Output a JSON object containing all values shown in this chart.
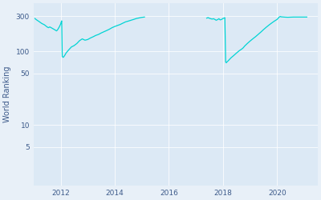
{
  "ylabel": "World Ranking",
  "line_color": "#00d4d4",
  "bg_color": "#dce9f5",
  "fig_bg_color": "#e8f0f8",
  "yticks": [
    5,
    10,
    50,
    100,
    300
  ],
  "xlim_start": 2011.0,
  "xlim_end": 2021.5,
  "ylim_bottom": 1.5,
  "ylim_top": 450,
  "xtick_vals": [
    2012,
    2014,
    2016,
    2018,
    2020
  ],
  "segment1": {
    "points": [
      [
        2011.05,
        280
      ],
      [
        2011.1,
        270
      ],
      [
        2011.2,
        255
      ],
      [
        2011.3,
        240
      ],
      [
        2011.4,
        230
      ],
      [
        2011.5,
        215
      ],
      [
        2011.55,
        210
      ],
      [
        2011.6,
        215
      ],
      [
        2011.65,
        210
      ],
      [
        2011.7,
        205
      ],
      [
        2011.75,
        200
      ],
      [
        2011.8,
        195
      ],
      [
        2011.85,
        190
      ],
      [
        2011.88,
        195
      ],
      [
        2011.9,
        200
      ],
      [
        2011.95,
        215
      ],
      [
        2012.0,
        235
      ],
      [
        2012.02,
        250
      ],
      [
        2012.04,
        260
      ],
      [
        2012.06,
        85
      ],
      [
        2012.1,
        83
      ],
      [
        2012.15,
        88
      ],
      [
        2012.2,
        95
      ],
      [
        2012.3,
        105
      ],
      [
        2012.4,
        115
      ],
      [
        2012.5,
        120
      ],
      [
        2012.6,
        128
      ],
      [
        2012.7,
        140
      ],
      [
        2012.8,
        148
      ],
      [
        2012.9,
        142
      ],
      [
        2013.0,
        145
      ],
      [
        2013.1,
        152
      ],
      [
        2013.2,
        158
      ],
      [
        2013.3,
        165
      ],
      [
        2013.4,
        170
      ],
      [
        2013.5,
        178
      ],
      [
        2013.6,
        185
      ],
      [
        2013.7,
        192
      ],
      [
        2013.8,
        200
      ],
      [
        2013.9,
        210
      ],
      [
        2014.0,
        218
      ],
      [
        2014.1,
        225
      ],
      [
        2014.2,
        232
      ],
      [
        2014.3,
        242
      ],
      [
        2014.4,
        252
      ],
      [
        2014.5,
        258
      ],
      [
        2014.6,
        265
      ],
      [
        2014.7,
        272
      ],
      [
        2014.8,
        280
      ],
      [
        2014.9,
        285
      ],
      [
        2015.0,
        290
      ],
      [
        2015.1,
        293
      ]
    ]
  },
  "segment2": {
    "points": [
      [
        2017.4,
        283
      ],
      [
        2017.45,
        288
      ],
      [
        2017.5,
        282
      ],
      [
        2017.55,
        278
      ],
      [
        2017.6,
        275
      ],
      [
        2017.65,
        278
      ],
      [
        2017.7,
        272
      ],
      [
        2017.75,
        265
      ],
      [
        2017.8,
        270
      ],
      [
        2017.85,
        278
      ],
      [
        2017.9,
        268
      ],
      [
        2017.95,
        272
      ],
      [
        2018.0,
        280
      ],
      [
        2018.02,
        282
      ],
      [
        2018.05,
        285
      ],
      [
        2018.07,
        287
      ],
      [
        2018.1,
        72
      ],
      [
        2018.12,
        70
      ],
      [
        2018.15,
        72
      ],
      [
        2018.2,
        75
      ],
      [
        2018.3,
        82
      ],
      [
        2018.4,
        88
      ],
      [
        2018.5,
        95
      ],
      [
        2018.6,
        102
      ],
      [
        2018.7,
        108
      ],
      [
        2018.75,
        112
      ],
      [
        2018.8,
        118
      ],
      [
        2018.9,
        128
      ],
      [
        2019.0,
        138
      ],
      [
        2019.1,
        148
      ],
      [
        2019.2,
        158
      ],
      [
        2019.3,
        170
      ],
      [
        2019.4,
        183
      ],
      [
        2019.5,
        198
      ],
      [
        2019.6,
        213
      ],
      [
        2019.7,
        228
      ],
      [
        2019.8,
        243
      ],
      [
        2019.9,
        258
      ],
      [
        2020.0,
        272
      ],
      [
        2020.05,
        285
      ],
      [
        2020.08,
        293
      ],
      [
        2020.1,
        296
      ],
      [
        2020.12,
        298
      ],
      [
        2020.15,
        295
      ],
      [
        2020.2,
        294
      ],
      [
        2020.3,
        292
      ],
      [
        2020.4,
        291
      ],
      [
        2020.5,
        292
      ],
      [
        2020.6,
        293
      ],
      [
        2020.7,
        293
      ],
      [
        2020.8,
        293
      ],
      [
        2021.0,
        293
      ],
      [
        2021.1,
        293
      ]
    ]
  }
}
